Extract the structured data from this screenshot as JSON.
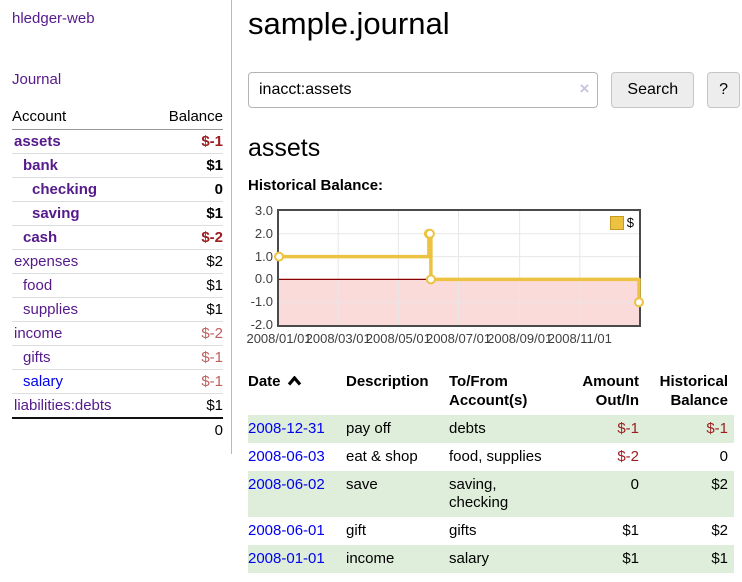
{
  "sidebar": {
    "brand": "hledger-web",
    "nav": {
      "journal": "Journal"
    },
    "table": {
      "header": {
        "account": "Account",
        "balance": "Balance"
      },
      "accounts": [
        {
          "name": "assets",
          "depth": 1,
          "in_query": true,
          "balance": "$-1"
        },
        {
          "name": "bank",
          "depth": 2,
          "in_query": true,
          "balance": "$1"
        },
        {
          "name": "checking",
          "depth": 3,
          "in_query": true,
          "balance": "0"
        },
        {
          "name": "saving",
          "depth": 3,
          "in_query": true,
          "balance": "$1"
        },
        {
          "name": "cash",
          "depth": 2,
          "in_query": true,
          "balance": "$-2"
        },
        {
          "name": "expenses",
          "depth": 1,
          "in_query": false,
          "balance": "$2"
        },
        {
          "name": "food",
          "depth": 2,
          "in_query": false,
          "balance": "$1"
        },
        {
          "name": "supplies",
          "depth": 2,
          "in_query": false,
          "balance": "$1"
        },
        {
          "name": "income",
          "depth": 1,
          "in_query": false,
          "balance": "$-2"
        },
        {
          "name": "gifts",
          "depth": 2,
          "in_query": false,
          "balance": "$-1"
        },
        {
          "name": "salary",
          "depth": 2,
          "in_query": false,
          "balance": "$-1",
          "link_color": "blue"
        },
        {
          "name": "liabilities:debts",
          "depth": 1,
          "in_query": false,
          "balance": "$1"
        }
      ],
      "total": "0"
    }
  },
  "main": {
    "title": "sample.journal",
    "search": {
      "value": "inacct:assets",
      "clear_icon": "×",
      "search_button": "Search",
      "help_button": "?"
    },
    "account_heading": "assets",
    "chart_title": "Historical Balance:"
  },
  "chart_data": {
    "type": "line",
    "step": true,
    "title": "Historical Balance",
    "series": [
      {
        "name": "$",
        "color": "#edc240",
        "points": [
          [
            "2008-01-01",
            1
          ],
          [
            "2008-06-01",
            2
          ],
          [
            "2008-06-02",
            2
          ],
          [
            "2008-06-03",
            0
          ],
          [
            "2008-12-31",
            -1
          ]
        ]
      }
    ],
    "xlim": [
      "2008-01-01",
      "2008-12-31"
    ],
    "ylim": [
      -2,
      3
    ],
    "yticks": [
      "3.0",
      "2.0",
      "1.0",
      "0.0",
      "-1.0",
      "-2.0"
    ],
    "xticks": [
      "2008/01/01",
      "2008/03/01",
      "2008/05/01",
      "2008/07/01",
      "2008/09/01",
      "2008/11/01"
    ],
    "legend_position": "top-right",
    "grid": true,
    "negative_fill": "#fbdada",
    "zero_line_color": "#8b0000"
  },
  "register": {
    "headers": {
      "date": "Date",
      "description": "Description",
      "accounts": "To/From Account(s)",
      "amount": "Amount Out/In",
      "balance": "Historical Balance"
    },
    "sort_icon": "chevron-up",
    "rows": [
      {
        "date": "2008-12-31",
        "description": "pay off",
        "accounts": [
          "debts"
        ],
        "amount": "$-1",
        "balance": "$-1"
      },
      {
        "date": "2008-06-03",
        "description": "eat & shop",
        "accounts": [
          "food, supplies"
        ],
        "amount": "$-2",
        "balance": "0"
      },
      {
        "date": "2008-06-02",
        "description": "save",
        "accounts": [
          "saving,",
          "checking"
        ],
        "amount": "0",
        "balance": "$2"
      },
      {
        "date": "2008-06-01",
        "description": "gift",
        "accounts": [
          "gifts"
        ],
        "amount": "$1",
        "balance": "$2"
      },
      {
        "date": "2008-01-01",
        "description": "income",
        "accounts": [
          "salary"
        ],
        "amount": "$1",
        "balance": "$1"
      }
    ]
  }
}
